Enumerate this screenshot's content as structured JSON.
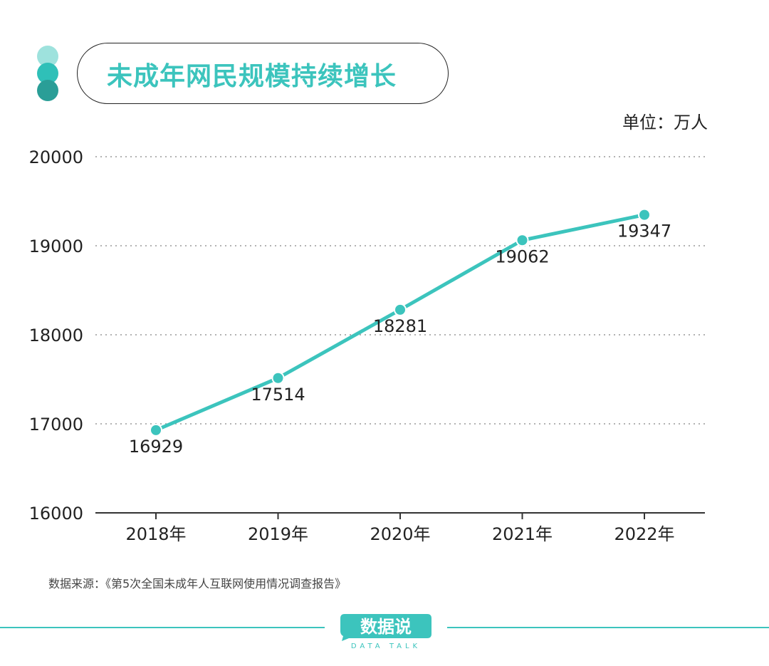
{
  "header": {
    "title": "未成年网民规模持续增长",
    "unit": "单位：万人"
  },
  "colors": {
    "accent": "#3cc4bd",
    "dot_light": "#9ee2dd",
    "dot_mid": "#2fc0b8",
    "dot_dark": "#2a9e97",
    "grid": "#999999",
    "axis": "#333333",
    "text": "#222222"
  },
  "chart_data": {
    "type": "line",
    "categories": [
      "2018年",
      "2019年",
      "2020年",
      "2021年",
      "2022年"
    ],
    "series": [
      {
        "values": [
          16929,
          17514,
          18281,
          19062,
          19347
        ]
      }
    ],
    "yticks": [
      "16000",
      "17000",
      "18000",
      "19000",
      "20000"
    ],
    "ylim": [
      16000,
      20000
    ],
    "grid": true,
    "xlabel": "",
    "ylabel": ""
  },
  "footer": {
    "source": "数据来源：《第5次全国未成年人互联网使用情况调查报告》",
    "brand": "数据说",
    "brand_sub": "DATA TALK"
  }
}
